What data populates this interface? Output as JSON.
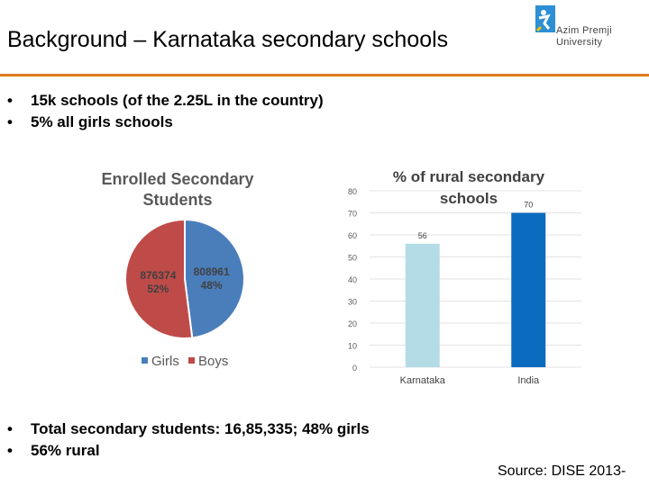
{
  "slide": {
    "title": "Background – Karnataka secondary schools",
    "logo_text_line1": "Azim Premji",
    "logo_text_line2": "University",
    "bullets_top": [
      "15k schools (of the 2.25L in the country)",
      "5% all girls schools"
    ],
    "bullets_bottom": [
      "Total secondary students: 16,85,335; 48% girls",
      "56% rural"
    ],
    "bullet_glyph": "•",
    "source": "Source: DISE 2013-"
  },
  "colors": {
    "accent_rule": "#e07a1f",
    "girls": "#4a7ebb",
    "boys": "#be4b48",
    "bar_karnataka": "#b4dce6",
    "bar_india": "#0b6bbf"
  },
  "chart_data": [
    {
      "type": "pie",
      "title": "Enrolled Secondary Students",
      "slices": [
        {
          "name": "Girls",
          "value": 808961,
          "label_value": "808961",
          "label_pct": "48%"
        },
        {
          "name": "Boys",
          "value": 876374,
          "label_value": "876374",
          "label_pct": "52%"
        }
      ],
      "legend": [
        "Girls",
        "Boys"
      ],
      "legend_position": "bottom"
    },
    {
      "type": "bar",
      "title": "% of rural secondary schools",
      "categories": [
        "Karnataka",
        "India"
      ],
      "values": [
        56,
        70
      ],
      "value_labels": [
        "56",
        "70"
      ],
      "ylim": [
        0,
        80
      ],
      "yticks": [
        "0",
        "10",
        "20",
        "30",
        "40",
        "50",
        "60",
        "70",
        "80"
      ],
      "grid": true,
      "legend": false
    }
  ]
}
